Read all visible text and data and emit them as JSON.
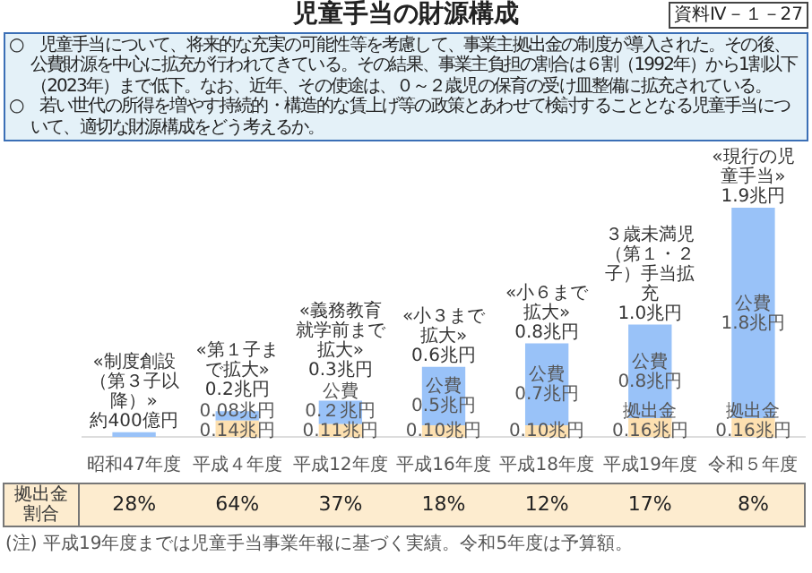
{
  "chart_data": {
    "type": "bar",
    "title": "児童手当の財源構成",
    "subtitle": "○　児童手当について、将来的な充実の可能性等を考慮して、事業主拠出金の制度が導入された。その後、公費財源を中心に拡充が行われてきている。その結果、事業主負担の割合は６割（1992年）から1割以下（2023年）まで低下。なお、近年、その使途は、０～２歳児の保育の受け皿整備に拡充されている。",
    "categories": [
      "昭和47年度",
      "平成４年度",
      "平成12年度",
      "平成16年度",
      "平成18年度",
      "平成19年度",
      "令和５年度"
    ],
    "stacked": true,
    "series": [
      {
        "color": "#fde0b0",
        "values": [
          null,
          0.14,
          0.11,
          0.1,
          0.1,
          0.16,
          0.16
        ],
        "value_labels": [
          null,
          "0.14兆円",
          "0.11兆円",
          "0.10兆円",
          "0.10兆円",
          "拠出金\n0.16兆円",
          "拠出金\n0.16兆円"
        ]
      },
      {
        "color": "#99c2f8",
        "values": [
          0.04,
          0.08,
          0.2,
          0.5,
          0.7,
          0.8,
          1.8
        ],
        "value_labels": [
          null,
          "0.08兆円",
          "公費\n0.２兆円",
          "公費\n0.5兆円",
          "公費\n0.7兆円",
          "公費\n0.8兆円",
          "公費\n1.8兆円"
        ]
      }
    ],
    "totals": [
      "約400億円",
      "0.2兆円",
      "0.3兆円",
      "0.6兆円",
      "0.8兆円",
      "1.0兆円",
      "1.9兆円"
    ],
    "annotations": [
      "資料Ⅳ－１－27",
      "○　若い世代の所得を増やす持続的・構造的な賃上げ等の政策とあわせて検討することとなる児童手当について、適切な財源構成をどう考えるか。",
      "拠出金割合",
      "(注) 平成19年度までは児童手当事業年報に基づく実績。令和5年度は予算額。",
      "28%",
      "64%",
      "37%",
      "18%",
      "12%",
      "17%",
      "8%",
      {
        "text": "«制度創設（第３子以降）»",
        "x": "昭和47年度",
        "y": 0.04
      },
      {
        "text": "«第１子まで拡大»",
        "x": "平成４年度",
        "y": 0.22
      },
      {
        "text": "«義務教育就学前まで拡大»",
        "x": "平成12年度",
        "y": 0.31
      },
      {
        "text": "«小３まで拡大»",
        "x": "平成16年度",
        "y": 0.6
      },
      {
        "text": "«小６まで拡大»",
        "x": "平成18年度",
        "y": 0.8
      },
      {
        "text": "３歳未満児（第１・２子）手当拡充",
        "x": "平成19年度",
        "y": 0.96
      },
      {
        "text": "«現行の児童手当»",
        "x": "令和５年度",
        "y": 1.96
      }
    ]
  }
}
